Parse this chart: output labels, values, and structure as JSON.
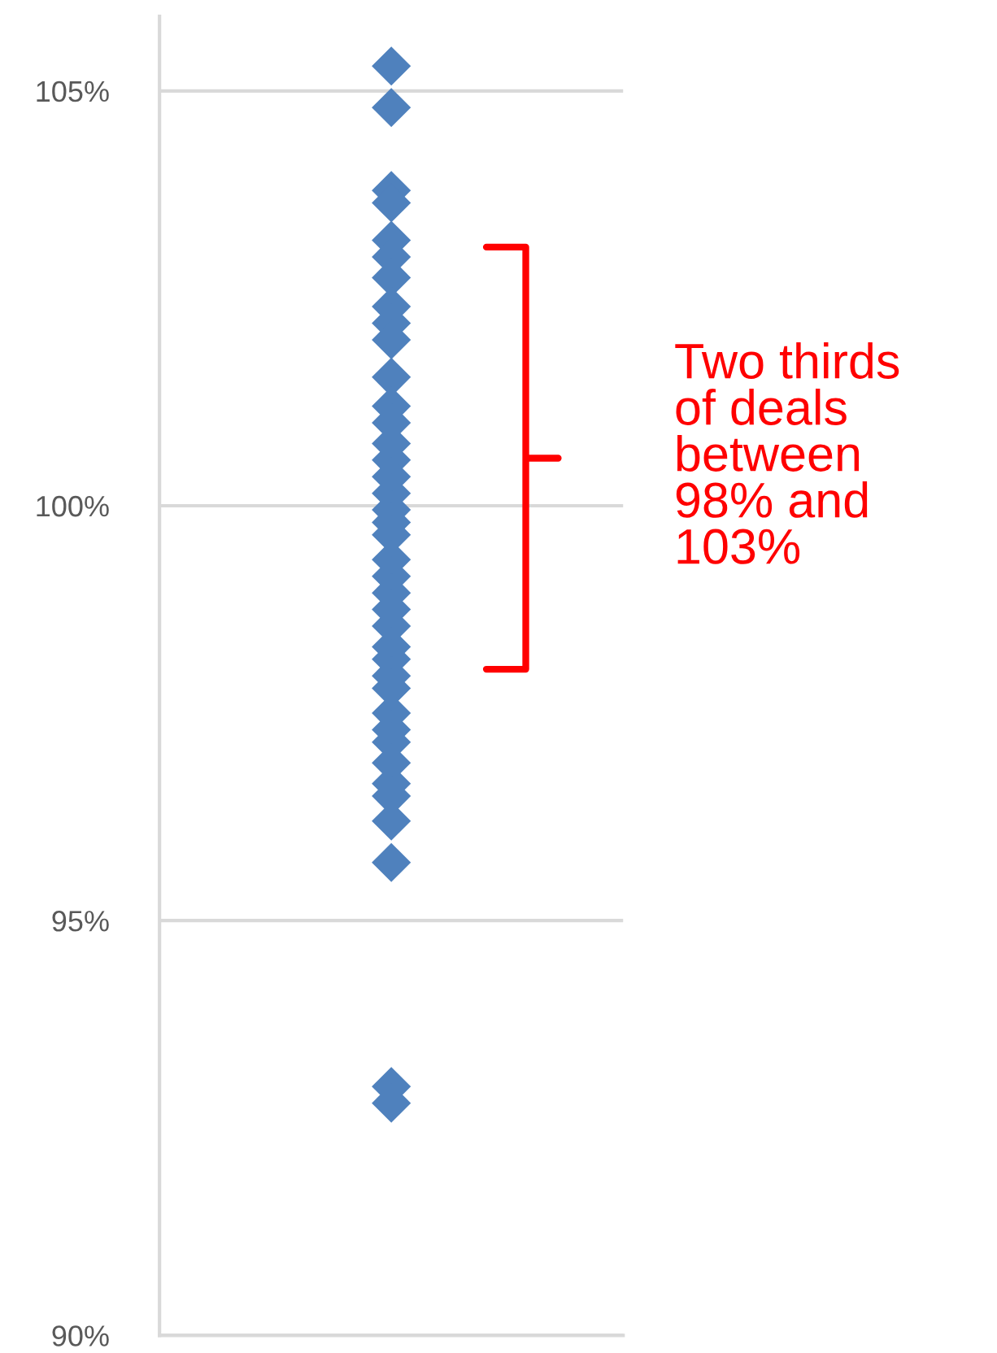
{
  "chart_data": {
    "type": "scatter",
    "categories": [
      null
    ],
    "marker": "diamond",
    "grid": "y",
    "series": [
      {
        "color": "#4f81bd",
        "x": [
          null,
          null,
          null,
          null,
          null,
          null,
          null,
          null,
          null,
          null,
          null,
          null,
          null,
          null,
          null,
          null,
          null,
          null,
          null,
          null,
          null,
          null,
          null,
          null,
          null,
          null,
          null,
          null,
          null,
          null,
          null,
          null,
          null,
          null,
          null,
          null,
          null,
          null,
          null
        ],
        "values": [
          105.3,
          104.8,
          103.8,
          103.65,
          103.2,
          103.0,
          102.75,
          102.4,
          102.2,
          102.0,
          101.55,
          101.2,
          101.0,
          100.75,
          100.55,
          100.35,
          100.15,
          99.95,
          99.8,
          99.65,
          99.35,
          99.15,
          98.95,
          98.75,
          98.55,
          98.3,
          98.15,
          97.95,
          97.8,
          97.5,
          97.3,
          97.15,
          96.9,
          96.65,
          96.5,
          96.2,
          95.7,
          93.0,
          92.8
        ]
      }
    ],
    "ylim": [
      90,
      105.9
    ],
    "yticks": [
      {
        "value": 90,
        "label": "90%"
      },
      {
        "value": 95,
        "label": "95%"
      },
      {
        "value": 100,
        "label": "100%"
      },
      {
        "value": 105,
        "label": "105%"
      }
    ],
    "annotations": [
      "Two thirds\nof deals\nbetween\n98% and\n103%"
    ]
  }
}
